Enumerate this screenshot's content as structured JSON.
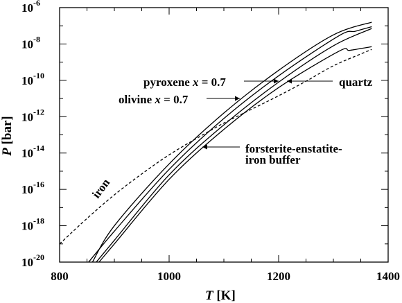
{
  "chart_data": {
    "type": "line",
    "xlabel_var": "T",
    "xlabel_unit": "[K]",
    "ylabel_var": "P",
    "ylabel_unit": "[bar]",
    "xlim": [
      800,
      1400
    ],
    "ylim_log10": [
      -20,
      -6
    ],
    "y_scale": "log",
    "x_ticks": [
      800,
      1000,
      1200,
      1400
    ],
    "x_tick_labels": [
      "800",
      "1000",
      "1200",
      "1400"
    ],
    "y_ticks_log10": [
      -20,
      -18,
      -16,
      -14,
      -12,
      -10,
      -8,
      -6
    ],
    "y_tick_labels": [
      {
        "base": "10",
        "exp": "-20"
      },
      {
        "base": "10",
        "exp": "-18"
      },
      {
        "base": "10",
        "exp": "-16"
      },
      {
        "base": "10",
        "exp": "-14"
      },
      {
        "base": "10",
        "exp": "-12"
      },
      {
        "base": "10",
        "exp": "-10"
      },
      {
        "base": "10",
        "exp": "-8"
      },
      {
        "base": "10",
        "exp": "-6"
      }
    ],
    "series": [
      {
        "key": "pyroxene",
        "dashed": false,
        "points": [
          [
            860,
            -20.0
          ],
          [
            900,
            -18.0
          ],
          [
            1000,
            -14.6
          ],
          [
            1100,
            -11.8
          ],
          [
            1200,
            -9.45
          ],
          [
            1300,
            -7.5
          ],
          [
            1370,
            -6.8
          ]
        ]
      },
      {
        "key": "olivine",
        "dashed": false,
        "points": [
          [
            853,
            -20.0
          ],
          [
            900,
            -18.3
          ],
          [
            1000,
            -14.9
          ],
          [
            1100,
            -12.1
          ],
          [
            1200,
            -9.75
          ],
          [
            1310,
            -7.55
          ],
          [
            1340,
            -7.3
          ],
          [
            1370,
            -7.05
          ]
        ]
      },
      {
        "key": "buffer",
        "dashed": false,
        "points": [
          [
            867,
            -20.0
          ],
          [
            900,
            -18.8
          ],
          [
            1000,
            -15.2
          ],
          [
            1100,
            -12.45
          ],
          [
            1200,
            -10.1
          ],
          [
            1300,
            -8.1
          ],
          [
            1370,
            -7.15
          ]
        ]
      },
      {
        "key": "quartz",
        "dashed": false,
        "points": [
          [
            872,
            -20.0
          ],
          [
            900,
            -19.0
          ],
          [
            1000,
            -15.45
          ],
          [
            1100,
            -12.7
          ],
          [
            1200,
            -10.4
          ],
          [
            1310,
            -8.4
          ],
          [
            1330,
            -8.35
          ],
          [
            1370,
            -8.15
          ]
        ]
      },
      {
        "key": "iron",
        "dashed": true,
        "points": [
          [
            800,
            -19.0
          ],
          [
            850,
            -17.6
          ],
          [
            900,
            -16.3
          ],
          [
            950,
            -15.15
          ],
          [
            1000,
            -14.1
          ],
          [
            1050,
            -13.2
          ],
          [
            1100,
            -12.35
          ],
          [
            1150,
            -11.6
          ],
          [
            1200,
            -10.85
          ],
          [
            1250,
            -10.05
          ],
          [
            1300,
            -9.2
          ],
          [
            1350,
            -8.55
          ],
          [
            1370,
            -8.3
          ]
        ]
      }
    ],
    "annotations": {
      "pyroxene": {
        "name": "pyroxene ",
        "var": "x",
        "eq": " = 0.7"
      },
      "olivine": {
        "name": "olivine ",
        "var": "x",
        "eq": " = 0.7"
      },
      "quartz": "quartz",
      "buffer_line1": "forsterite-enstatite-",
      "buffer_line2": "iron buffer",
      "iron": "iron"
    }
  }
}
